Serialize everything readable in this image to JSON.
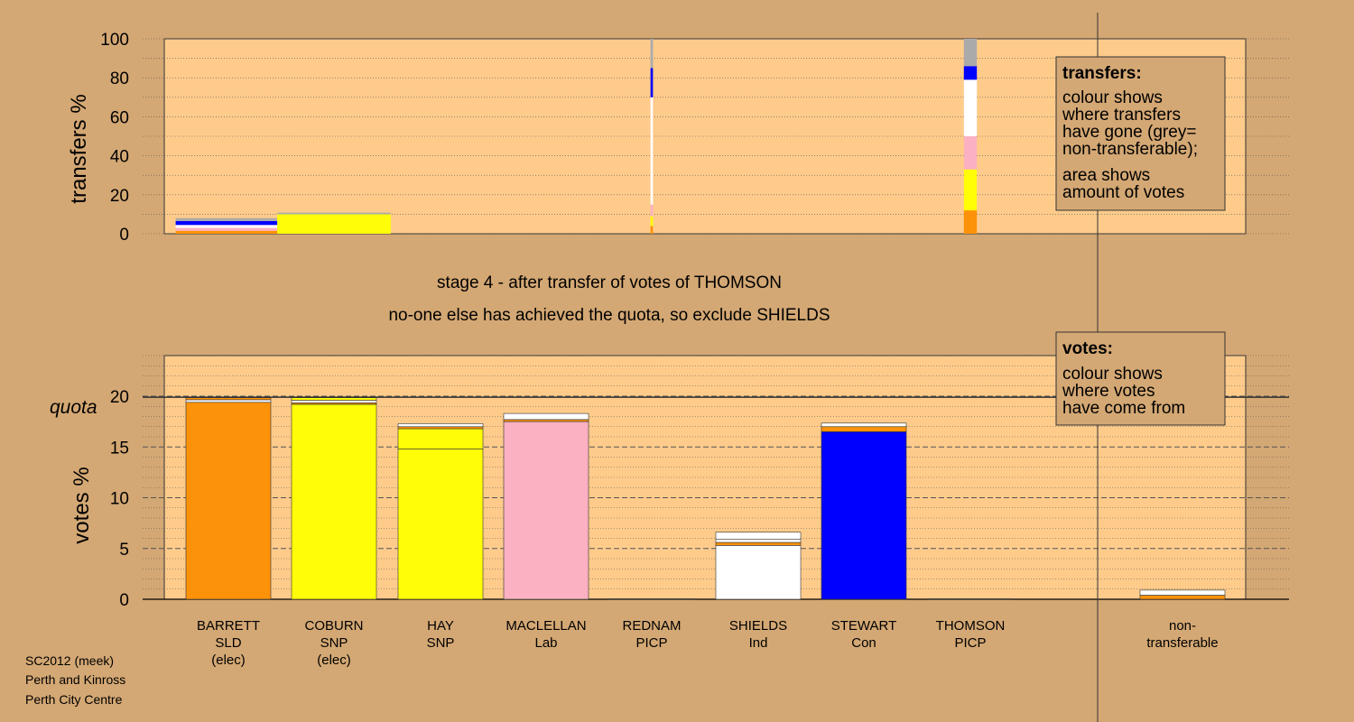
{
  "colors": {
    "background": "#d4a874",
    "plot_bg": "#fecb8b",
    "SLD": "#fc9209",
    "SNP": "#fffe08",
    "Lab": "#fbb1c1",
    "Con": "#0000fe",
    "Ind": "#ffffff",
    "PICP": "#ffffff",
    "nontransferable": "#aaaaaa"
  },
  "stage_title": "stage 4 - after transfer of votes of THOMSON",
  "stage_subtitle": "no-one else has achieved the quota, so exclude SHIELDS",
  "footer": [
    "SC2012 (meek)",
    "Perth and Kinross",
    "Perth City Centre"
  ],
  "legend_transfers": {
    "title": "transfers:",
    "lines1": [
      "colour shows",
      "where transfers",
      "have gone (grey=",
      "non-transferable);"
    ],
    "lines2": [
      "area shows",
      "amount of votes"
    ]
  },
  "legend_votes": {
    "title": "votes:",
    "lines": [
      "colour shows",
      "where votes",
      "have come from"
    ]
  },
  "quota_label": "quota",
  "candidates": [
    {
      "name": "BARRETT",
      "party": "SLD",
      "note": "(elec)"
    },
    {
      "name": "COBURN",
      "party": "SNP",
      "note": "(elec)"
    },
    {
      "name": "HAY",
      "party": "SNP",
      "note": ""
    },
    {
      "name": "MACLELLAN",
      "party": "Lab",
      "note": ""
    },
    {
      "name": "REDNAM",
      "party": "PICP",
      "note": ""
    },
    {
      "name": "SHIELDS",
      "party": "Ind",
      "note": ""
    },
    {
      "name": "STEWART",
      "party": "Con",
      "note": ""
    },
    {
      "name": "THOMSON",
      "party": "PICP",
      "note": ""
    }
  ],
  "nontransferable_label": [
    "non-",
    "transferable"
  ],
  "chart_data": [
    {
      "type": "bar",
      "ylabel": "transfers %",
      "ylim": [
        0,
        100
      ],
      "yticks": [
        0,
        20,
        40,
        60,
        80,
        100
      ],
      "bars": [
        {
          "candidate": "BARRETT",
          "width_share": 0.13,
          "segments": [
            {
              "color": "SLD",
              "value": 1.5
            },
            {
              "color": "Lab",
              "value": 1.5
            },
            {
              "color": "Ind",
              "value": 1.5
            },
            {
              "color": "Con",
              "value": 2.0
            },
            {
              "color": "nontransferable",
              "value": 1.5
            }
          ]
        },
        {
          "candidate": "COBURN",
          "width_share": 0.14,
          "segments": [
            {
              "color": "SNP",
              "value": 10
            },
            {
              "color": "nontransferable",
              "value": 0.8
            }
          ]
        },
        {
          "candidate": "REDNAM",
          "width_share": 0.003,
          "segments": [
            {
              "color": "SLD",
              "value": 4
            },
            {
              "color": "SNP",
              "value": 5
            },
            {
              "color": "Lab",
              "value": 6
            },
            {
              "color": "Ind",
              "value": 55
            },
            {
              "color": "Con",
              "value": 15
            },
            {
              "color": "nontransferable",
              "value": 15
            }
          ]
        },
        {
          "candidate": "THOMSON",
          "width_share": 0.016,
          "segments": [
            {
              "color": "SLD",
              "value": 12
            },
            {
              "color": "SNP",
              "value": 21
            },
            {
              "color": "Lab",
              "value": 17
            },
            {
              "color": "Ind",
              "value": 29
            },
            {
              "color": "Con",
              "value": 7
            },
            {
              "color": "nontransferable",
              "value": 14
            }
          ]
        }
      ]
    },
    {
      "type": "bar",
      "ylabel": "votes %",
      "ylim": [
        0,
        24
      ],
      "yticks": [
        0,
        5,
        10,
        15,
        20
      ],
      "quota": 19.9,
      "bars": [
        {
          "candidate": "BARRETT",
          "segments": [
            {
              "color": "SLD",
              "value": 19.4
            },
            {
              "color": "Ind",
              "value": 0.25
            },
            {
              "color": "SLD",
              "value": 0.2
            }
          ]
        },
        {
          "candidate": "COBURN",
          "segments": [
            {
              "color": "SNP",
              "value": 19.2
            },
            {
              "color": "SLD",
              "value": 0.15
            },
            {
              "color": "Ind",
              "value": 0.25
            },
            {
              "color": "SNP",
              "value": 0.25
            }
          ]
        },
        {
          "candidate": "HAY",
          "segments": [
            {
              "color": "SNP",
              "value": 14.8
            },
            {
              "color": "SNP",
              "value": 2.0
            },
            {
              "color": "SLD",
              "value": 0.2
            },
            {
              "color": "Ind",
              "value": 0.3
            }
          ]
        },
        {
          "candidate": "MACLELLAN",
          "segments": [
            {
              "color": "Lab",
              "value": 17.5
            },
            {
              "color": "SLD",
              "value": 0.2
            },
            {
              "color": "Ind",
              "value": 0.6
            }
          ]
        },
        {
          "candidate": "REDNAM",
          "segments": [
            {
              "color": "Ind",
              "value": 0.05
            }
          ]
        },
        {
          "candidate": "SHIELDS",
          "segments": [
            {
              "color": "Ind",
              "value": 5.3
            },
            {
              "color": "SLD",
              "value": 0.3
            },
            {
              "color": "Ind",
              "value": 0.3
            },
            {
              "color": "Ind",
              "value": 0.7
            }
          ]
        },
        {
          "candidate": "STEWART",
          "segments": [
            {
              "color": "Con",
              "value": 16.5
            },
            {
              "color": "SLD",
              "value": 0.5
            },
            {
              "color": "Ind",
              "value": 0.35
            }
          ]
        },
        {
          "candidate": "THOMSON",
          "segments": [
            {
              "color": "Ind",
              "value": 0.05
            }
          ]
        },
        {
          "candidate": "non-transferable",
          "segments": [
            {
              "color": "SLD",
              "value": 0.4
            },
            {
              "color": "Ind",
              "value": 0.5
            }
          ]
        }
      ]
    }
  ]
}
